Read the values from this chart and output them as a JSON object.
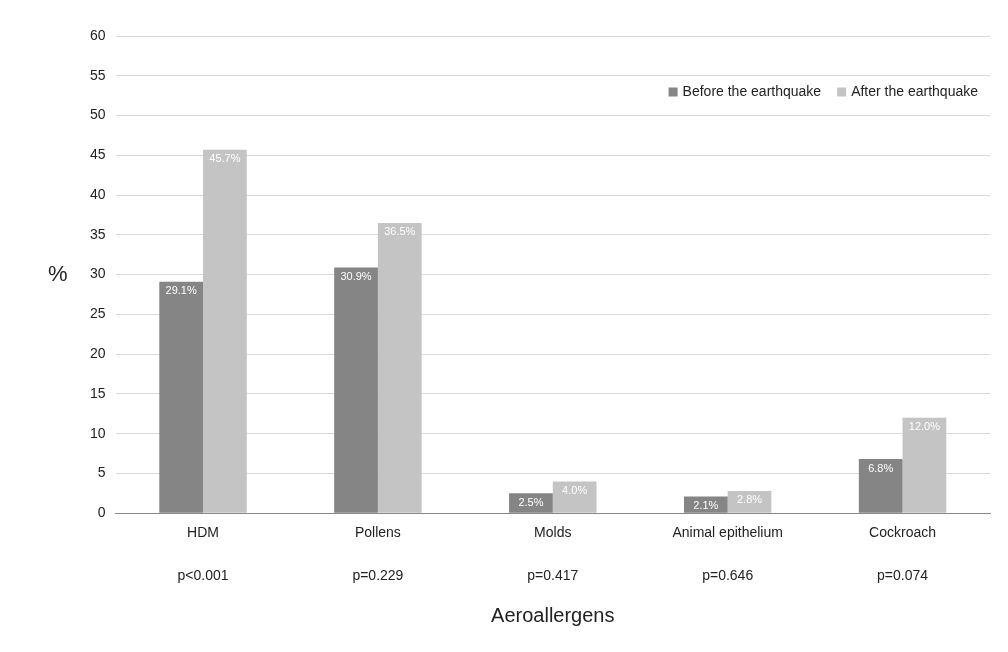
{
  "chart_data": {
    "type": "bar",
    "xlabel": "Aeroallergens",
    "ylabel": "%",
    "categories": [
      "HDM",
      "Pollens",
      "Molds",
      "Animal epithelium",
      "Cockroach"
    ],
    "series": [
      {
        "name": "Before the earthquake",
        "color": "#858585",
        "values": [
          29.1,
          30.9,
          2.5,
          2.1,
          6.8
        ],
        "value_labels": [
          "29.1%",
          "30.9%",
          "2.5%",
          "2.1%",
          "6.8%"
        ]
      },
      {
        "name": "After the earthquake",
        "color": "#c4c4c4",
        "values": [
          45.7,
          36.5,
          4.0,
          2.8,
          12.0
        ],
        "value_labels": [
          "45.7%",
          "36.5%",
          "4.0%",
          "2.8%",
          "12.0%"
        ]
      }
    ],
    "ylim": [
      0,
      60
    ],
    "yticks": [
      0,
      5,
      10,
      15,
      20,
      25,
      30,
      35,
      40,
      45,
      50,
      55,
      60
    ],
    "grid": "y",
    "legend": "top right",
    "annotations": [
      "p<0.001",
      "p=0.229",
      "p=0.417",
      "p=0.646",
      "p=0.074"
    ]
  }
}
